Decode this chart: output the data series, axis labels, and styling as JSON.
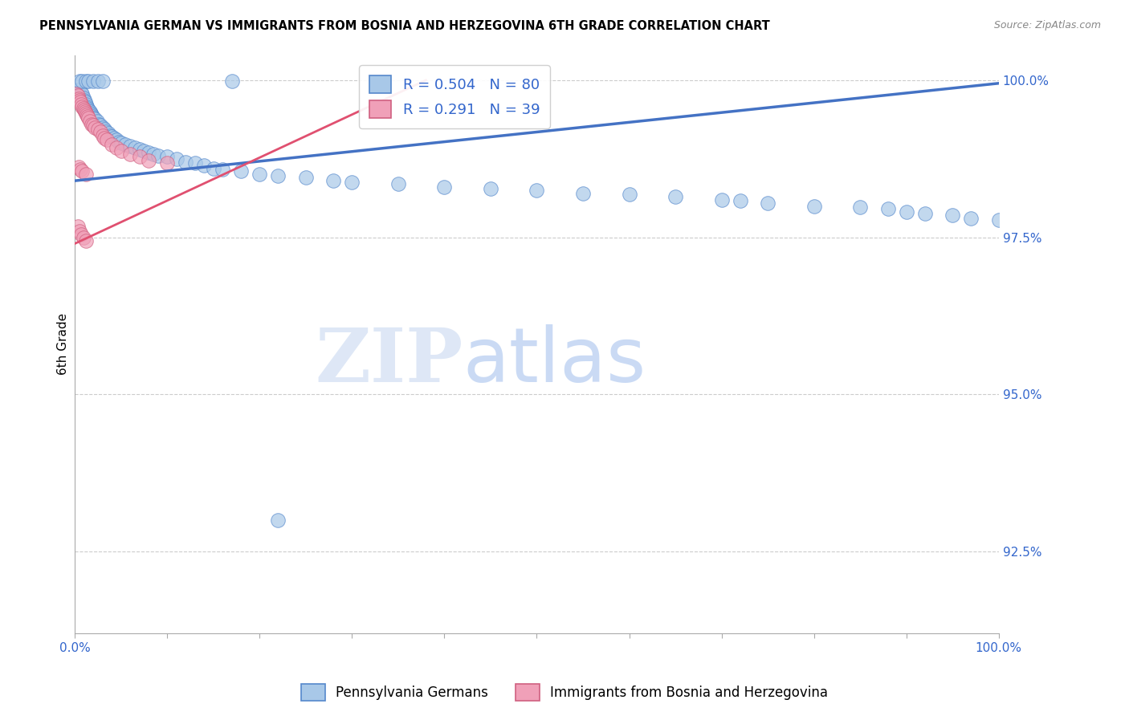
{
  "title": "PENNSYLVANIA GERMAN VS IMMIGRANTS FROM BOSNIA AND HERZEGOVINA 6TH GRADE CORRELATION CHART",
  "source": "Source: ZipAtlas.com",
  "ylabel": "6th Grade",
  "ytick_labels": [
    "100.0%",
    "97.5%",
    "95.0%",
    "92.5%"
  ],
  "ytick_values": [
    1.0,
    0.975,
    0.95,
    0.925
  ],
  "xmin": 0.0,
  "xmax": 1.0,
  "ymin": 0.912,
  "ymax": 1.004,
  "blue_R": 0.504,
  "blue_N": 80,
  "pink_R": 0.291,
  "pink_N": 39,
  "blue_color": "#A8C8E8",
  "pink_color": "#F0A0B8",
  "blue_edge_color": "#5588CC",
  "pink_edge_color": "#D06080",
  "blue_line_color": "#4472C4",
  "pink_line_color": "#E05070",
  "legend_label_blue": "Pennsylvania Germans",
  "legend_label_pink": "Immigrants from Bosnia and Herzegovina",
  "watermark_zip": "ZIP",
  "watermark_atlas": "atlas",
  "blue_line_x0": 0.0,
  "blue_line_y0": 0.984,
  "blue_line_x1": 1.0,
  "blue_line_y1": 0.9995,
  "pink_line_x0": 0.0,
  "pink_line_y0": 0.974,
  "pink_line_x1": 0.38,
  "pink_line_y1": 1.0,
  "blue_dots_x": [
    0.002,
    0.004,
    0.005,
    0.006,
    0.007,
    0.008,
    0.009,
    0.01,
    0.011,
    0.012,
    0.013,
    0.014,
    0.015,
    0.016,
    0.017,
    0.018,
    0.019,
    0.02,
    0.022,
    0.024,
    0.026,
    0.028,
    0.03,
    0.032,
    0.034,
    0.036,
    0.038,
    0.04,
    0.042,
    0.045,
    0.048,
    0.05,
    0.055,
    0.06,
    0.065,
    0.07,
    0.075,
    0.08,
    0.085,
    0.09,
    0.1,
    0.11,
    0.12,
    0.13,
    0.14,
    0.15,
    0.16,
    0.18,
    0.2,
    0.22,
    0.25,
    0.28,
    0.3,
    0.35,
    0.4,
    0.45,
    0.5,
    0.55,
    0.6,
    0.65,
    0.7,
    0.72,
    0.75,
    0.8,
    0.85,
    0.88,
    0.9,
    0.92,
    0.95,
    0.97,
    1.0,
    0.005,
    0.008,
    0.012,
    0.015,
    0.02,
    0.025,
    0.03,
    0.22,
    0.17
  ],
  "blue_dots_y": [
    0.998,
    0.9985,
    0.997,
    0.9975,
    0.998,
    0.9978,
    0.9972,
    0.9968,
    0.9965,
    0.9962,
    0.9958,
    0.9955,
    0.9952,
    0.995,
    0.9948,
    0.9945,
    0.9942,
    0.994,
    0.9938,
    0.9935,
    0.993,
    0.9928,
    0.9925,
    0.9922,
    0.9918,
    0.9915,
    0.9912,
    0.991,
    0.9908,
    0.9905,
    0.9902,
    0.99,
    0.9898,
    0.9895,
    0.9892,
    0.989,
    0.9888,
    0.9885,
    0.9882,
    0.988,
    0.9878,
    0.9875,
    0.987,
    0.9868,
    0.9865,
    0.986,
    0.9858,
    0.9855,
    0.985,
    0.9848,
    0.9845,
    0.984,
    0.9838,
    0.9835,
    0.983,
    0.9828,
    0.9825,
    0.982,
    0.9818,
    0.9815,
    0.981,
    0.9808,
    0.9805,
    0.98,
    0.9798,
    0.9795,
    0.979,
    0.9788,
    0.9785,
    0.978,
    0.9778,
    0.9998,
    0.9998,
    0.9998,
    0.9998,
    0.9998,
    0.9998,
    0.9998,
    0.93,
    0.9998
  ],
  "pink_dots_x": [
    0.002,
    0.003,
    0.004,
    0.005,
    0.006,
    0.007,
    0.008,
    0.009,
    0.01,
    0.011,
    0.012,
    0.013,
    0.014,
    0.015,
    0.016,
    0.018,
    0.02,
    0.022,
    0.025,
    0.028,
    0.03,
    0.032,
    0.035,
    0.04,
    0.045,
    0.05,
    0.06,
    0.07,
    0.08,
    0.1,
    0.003,
    0.005,
    0.007,
    0.009,
    0.012,
    0.004,
    0.006,
    0.008,
    0.012
  ],
  "pink_dots_y": [
    0.9978,
    0.9975,
    0.997,
    0.9968,
    0.9965,
    0.9962,
    0.9958,
    0.9955,
    0.9952,
    0.995,
    0.9948,
    0.9945,
    0.9942,
    0.994,
    0.9935,
    0.993,
    0.9928,
    0.9925,
    0.9922,
    0.9918,
    0.9912,
    0.9908,
    0.9905,
    0.9898,
    0.9892,
    0.9888,
    0.9882,
    0.9878,
    0.9872,
    0.9868,
    0.9768,
    0.976,
    0.9755,
    0.975,
    0.9745,
    0.9862,
    0.9858,
    0.9855,
    0.985
  ]
}
